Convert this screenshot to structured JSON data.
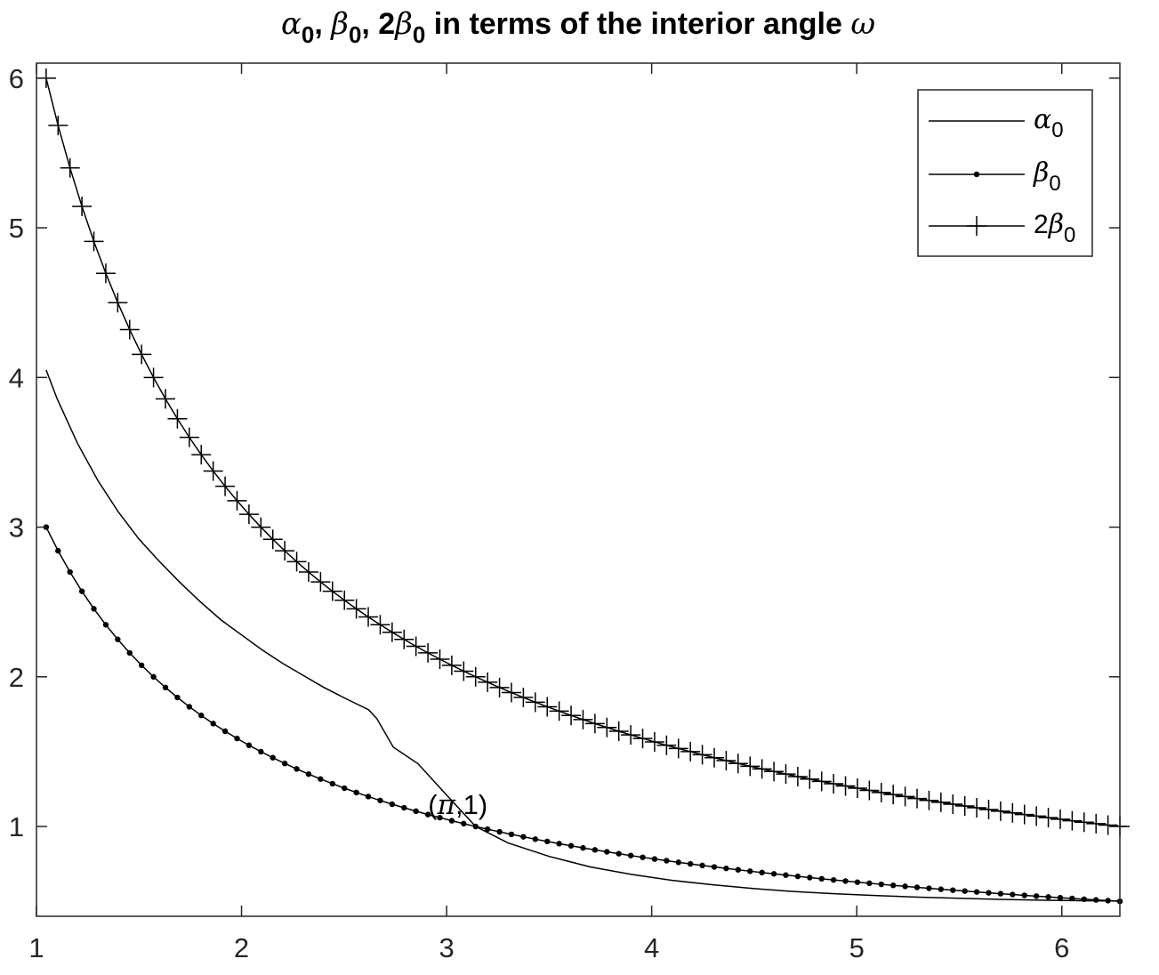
{
  "chart_data": {
    "type": "line",
    "title": {
      "parts": [
        {
          "text": "α",
          "style": "ital"
        },
        {
          "text": "0",
          "style": "sub"
        },
        {
          "text": ", ",
          "style": "bold"
        },
        {
          "text": "β",
          "style": "ital"
        },
        {
          "text": "0",
          "style": "sub"
        },
        {
          "text": ", 2",
          "style": "bold"
        },
        {
          "text": "β",
          "style": "ital"
        },
        {
          "text": "0",
          "style": "sub"
        },
        {
          "text": " in terms of the interior angle ",
          "style": "bold"
        },
        {
          "text": "ω",
          "style": "ital"
        }
      ]
    },
    "xlim": [
      1,
      6.283
    ],
    "ylim": [
      0.4,
      6.1
    ],
    "xticks": [
      1,
      2,
      3,
      4,
      5,
      6
    ],
    "yticks": [
      1,
      2,
      3,
      4,
      5,
      6
    ],
    "x_start": 1.0472,
    "x_end": 6.2832,
    "samples": 91,
    "grid": false,
    "legend_position": "top-right",
    "series": [
      {
        "name": "α0",
        "legend_parts": [
          {
            "text": "α",
            "style": "ital"
          },
          {
            "text": "0",
            "style": "sub"
          }
        ],
        "marker": "none",
        "points": [
          [
            1.0472,
            4.05
          ],
          [
            1.1,
            3.86
          ],
          [
            1.2,
            3.56
          ],
          [
            1.3,
            3.31
          ],
          [
            1.4,
            3.1
          ],
          [
            1.5,
            2.92
          ],
          [
            1.6,
            2.77
          ],
          [
            1.7,
            2.63
          ],
          [
            1.8,
            2.5
          ],
          [
            1.9,
            2.38
          ],
          [
            2.0,
            2.28
          ],
          [
            2.1,
            2.18
          ],
          [
            2.2,
            2.09
          ],
          [
            2.3,
            2.01
          ],
          [
            2.4,
            1.93
          ],
          [
            2.5,
            1.86
          ],
          [
            2.62,
            1.78
          ],
          [
            2.66,
            1.72
          ],
          [
            2.74,
            1.53
          ],
          [
            2.86,
            1.42
          ],
          [
            3.0,
            1.21
          ],
          [
            3.1416,
            1.0
          ],
          [
            3.3,
            0.89
          ],
          [
            3.5,
            0.8
          ],
          [
            3.7,
            0.73
          ],
          [
            3.9,
            0.68
          ],
          [
            4.1,
            0.64
          ],
          [
            4.3,
            0.61
          ],
          [
            4.5,
            0.585
          ],
          [
            4.7,
            0.565
          ],
          [
            4.9,
            0.55
          ],
          [
            5.1,
            0.538
          ],
          [
            5.3,
            0.528
          ],
          [
            5.5,
            0.52
          ],
          [
            5.7,
            0.513
          ],
          [
            5.9,
            0.508
          ],
          [
            6.1,
            0.504
          ],
          [
            6.2832,
            0.502
          ]
        ]
      },
      {
        "name": "β0",
        "legend_parts": [
          {
            "text": "β",
            "style": "ital"
          },
          {
            "text": "0",
            "style": "sub"
          }
        ],
        "marker": "dot",
        "formula": "pi / x",
        "start_value": 3.0,
        "end_value": 0.5
      },
      {
        "name": "2β0",
        "legend_parts": [
          {
            "text": "2",
            "style": "plain"
          },
          {
            "text": "β",
            "style": "ital"
          },
          {
            "text": "0",
            "style": "sub"
          }
        ],
        "marker": "plus",
        "formula": "2 * pi / x",
        "start_value": 6.0,
        "end_value": 1.0
      }
    ],
    "annotation": {
      "parts": [
        {
          "text": "(",
          "style": "plain"
        },
        {
          "text": "π",
          "style": "ital"
        },
        {
          "text": ",1)",
          "style": "plain"
        }
      ],
      "x": 3.1416,
      "y": 1.0
    }
  }
}
